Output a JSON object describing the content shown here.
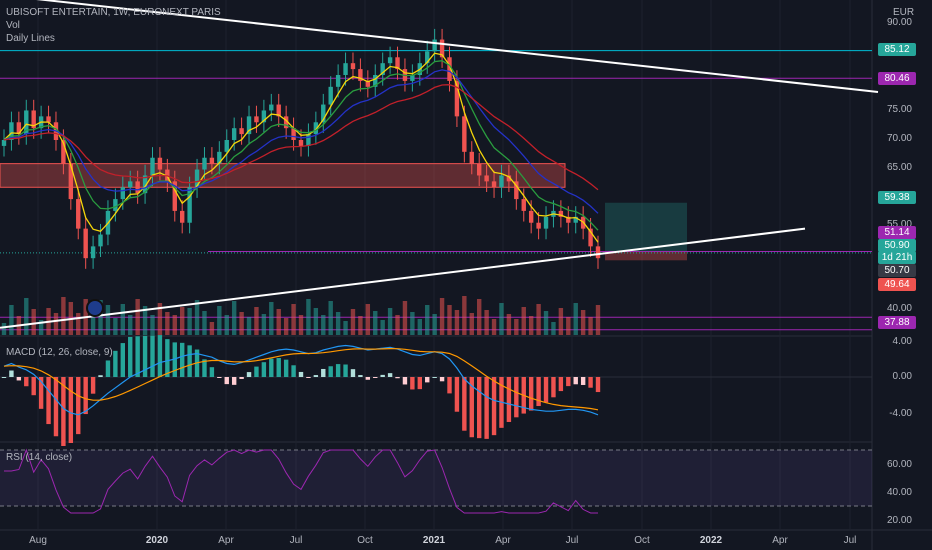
{
  "header": {
    "symbol": "UBISOFT ENTERTAIN, 1W, EURONEXT PARIS",
    "vol_label": "Vol",
    "daily_lines_label": "Daily Lines",
    "currency": "EUR"
  },
  "macd": {
    "label": "MACD (12, 26, close, 9)"
  },
  "rsi": {
    "label": "RSI (14, close)"
  },
  "price_axis": {
    "ticks": [
      "90.00",
      "75.00",
      "70.00",
      "65.00",
      "55.00",
      "40.00"
    ]
  },
  "macd_axis": {
    "ticks": [
      "4.00",
      "0.00",
      "-4.00"
    ]
  },
  "rsi_axis": {
    "ticks": [
      "60.00",
      "40.00",
      "20.00"
    ]
  },
  "time_axis": {
    "labels": [
      {
        "text": "Aug",
        "bold": false
      },
      {
        "text": "2020",
        "bold": true
      },
      {
        "text": "Apr",
        "bold": false
      },
      {
        "text": "Jul",
        "bold": false
      },
      {
        "text": "Oct",
        "bold": false
      },
      {
        "text": "2021",
        "bold": true
      },
      {
        "text": "Apr",
        "bold": false
      },
      {
        "text": "Jul",
        "bold": false
      },
      {
        "text": "Oct",
        "bold": false
      },
      {
        "text": "2022",
        "bold": true
      },
      {
        "text": "Apr",
        "bold": false
      },
      {
        "text": "Jul",
        "bold": false
      }
    ]
  },
  "badges": [
    {
      "text": "85.12",
      "bg": "#26a69a"
    },
    {
      "text": "80.46",
      "bg": "#9c27b0"
    },
    {
      "text": "59.38",
      "bg": "#26a69a"
    },
    {
      "text": "51.14",
      "bg": "#9c27b0"
    },
    {
      "text": "50.90",
      "bg": "#26a69a"
    },
    {
      "text": "1d 21h",
      "bg": "#26a69a"
    },
    {
      "text": "50.70",
      "bg": "#363a45"
    },
    {
      "text": "49.64",
      "bg": "#ef5350"
    },
    {
      "text": "37.88",
      "bg": "#9c27b0"
    }
  ],
  "colors": {
    "up": "#26a69a",
    "down": "#ef5350",
    "ema_fast": "#f5d60a",
    "ema_mid": "#2a9d3f",
    "ema_slow": "#2432c8",
    "ema_long": "#c2202a",
    "resistance_line": "#00bcd4",
    "support_line": "#9c27b0",
    "macd_line": "#2196f3",
    "signal_line": "#ff9800",
    "rsi_line": "#9c27b0"
  },
  "chart_data": {
    "type": "candlestick",
    "title": "UBISOFT ENTERTAIN, 1W, EURONEXT PARIS",
    "currency": "EUR",
    "x_range": [
      "2019-07",
      "2022-07"
    ],
    "y_range": [
      37,
      92
    ],
    "horizontal_levels": [
      85.12,
      80.46,
      51.14,
      37.88
    ],
    "zone": {
      "from": 62,
      "to": 66
    },
    "trendlines": [
      {
        "from": [
          "2019-07",
          96
        ],
        "to": [
          "2022-07",
          78
        ]
      },
      {
        "from": [
          "2019-07",
          38
        ],
        "to": [
          "2021-11",
          55
        ]
      }
    ],
    "last_price": 50.9,
    "weekly_closes": [
      70,
      73,
      71,
      75,
      72,
      74,
      73,
      70,
      66,
      60,
      55,
      50,
      52,
      54,
      58,
      60,
      62,
      63,
      61,
      64,
      67,
      65,
      63,
      58,
      56,
      62,
      65,
      67,
      66,
      68,
      70,
      72,
      71,
      74,
      73,
      75,
      76,
      74,
      72,
      70,
      69,
      71,
      73,
      76,
      79,
      81,
      83,
      82,
      80,
      79,
      81,
      83,
      84,
      82,
      80,
      81,
      83,
      85,
      87,
      84,
      80,
      74,
      68,
      66,
      64,
      63,
      62,
      64,
      63,
      60,
      58,
      56,
      55,
      57,
      58,
      57,
      56,
      57,
      55,
      52,
      50
    ],
    "rsi_levels": [
      70,
      30
    ],
    "macd_values": [
      1.2,
      1.5,
      1.1,
      0.8,
      0.3,
      -0.5,
      -1.5,
      -2.5,
      -3.5,
      -4.0,
      -4.2,
      -3.8,
      -3.2,
      -2.5,
      -1.8,
      -1.2,
      -0.6,
      0.0,
      0.4,
      0.8,
      1.2,
      1.6,
      1.8,
      2.0,
      2.3,
      2.5,
      2.6,
      2.4,
      2.2,
      1.8,
      1.5,
      1.4,
      1.6,
      1.9,
      2.2,
      2.5,
      2.8,
      3.0,
      3.1,
      3.0,
      2.8,
      2.6,
      2.7,
      3.0,
      3.2,
      3.4,
      3.5,
      3.4,
      3.2,
      3.0,
      3.1,
      3.2,
      3.3,
      3.1,
      2.8,
      2.5,
      2.4,
      2.6,
      2.8,
      2.6,
      2.0,
      1.0,
      -0.2,
      -1.0,
      -1.6,
      -2.2,
      -2.6,
      -2.8,
      -3.0,
      -3.2,
      -3.4,
      -3.6,
      -3.7,
      -3.8,
      -3.8,
      -3.7,
      -3.6,
      -3.6,
      -3.7,
      -3.9,
      -4.2
    ]
  }
}
